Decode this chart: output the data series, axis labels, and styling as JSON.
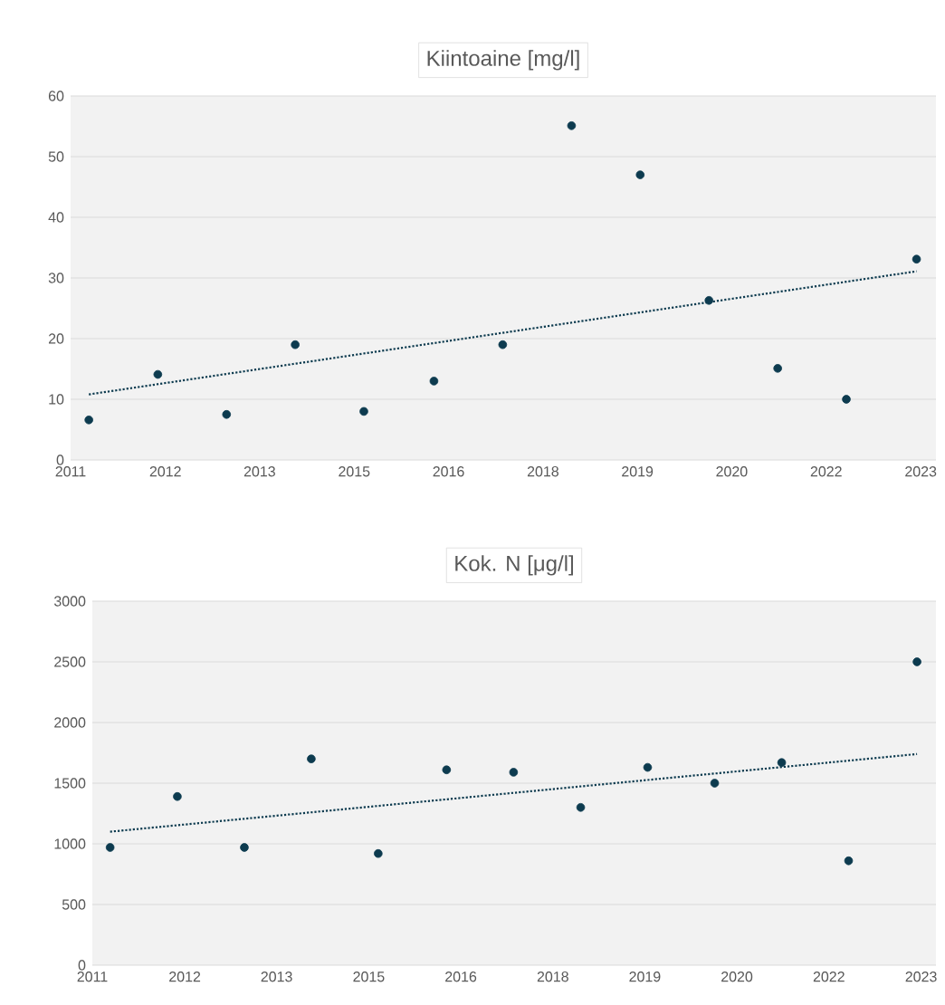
{
  "chart_data": [
    {
      "type": "scatter",
      "title": "Kiintoaine     [mg/l]",
      "x": [
        "2011-06-24",
        "2012-06-21",
        "2013-06-18",
        "2014-06-14",
        "2015-06-10",
        "2016-06-13",
        "2017-06-10",
        "2018-06-07",
        "2019-06-03",
        "2020-05-30",
        "2021-05-27",
        "2022-05-23",
        "2023-05-27"
      ],
      "series": [
        {
          "color": "#0d3b4f",
          "marker": "circle",
          "values": [
            6.6,
            14.1,
            7.5,
            19,
            8,
            13,
            19,
            55.1,
            47,
            26.3,
            15.1,
            10,
            33.1
          ]
        },
        {
          "type": "line",
          "color": "#0d3b4f",
          "marker": "none",
          "line_style": "dotted",
          "x": [
            "2011-06-24",
            "2023-05-27"
          ],
          "values": [
            10.8,
            31.1
          ]
        }
      ],
      "xlim": [
        "2011-03-20",
        "2023-09-06"
      ],
      "xticks": [
        {
          "value": "2011-03-20",
          "label": "2011"
        },
        {
          "value": "2012-07-31",
          "label": "2012"
        },
        {
          "value": "2013-12-09",
          "label": "2013"
        },
        {
          "value": "2015-04-20",
          "label": "2015"
        },
        {
          "value": "2016-08-29",
          "label": "2016"
        },
        {
          "value": "2018-01-08",
          "label": "2018"
        },
        {
          "value": "2019-05-19",
          "label": "2019"
        },
        {
          "value": "2020-09-27",
          "label": "2020"
        },
        {
          "value": "2022-02-06",
          "label": "2022"
        },
        {
          "value": "2023-06-18",
          "label": "2023"
        }
      ],
      "ylim": [
        0,
        60
      ],
      "yticks": [
        0,
        10,
        20,
        30,
        40,
        50,
        60
      ],
      "grid": "y"
    },
    {
      "type": "scatter",
      "title": "Kok. N     [μg/l]",
      "x": [
        "2011-06-24",
        "2012-06-21",
        "2013-06-18",
        "2014-06-14",
        "2015-06-10",
        "2016-06-13",
        "2017-06-10",
        "2018-06-07",
        "2019-06-03",
        "2020-05-30",
        "2021-05-27",
        "2022-05-23",
        "2023-05-27"
      ],
      "series": [
        {
          "color": "#0d3b4f",
          "marker": "circle",
          "values": [
            970,
            1390,
            970,
            1700,
            920,
            1610,
            1590,
            1300,
            1630,
            1500,
            1670,
            860,
            2500
          ]
        },
        {
          "type": "line",
          "color": "#0d3b4f",
          "marker": "none",
          "line_style": "dotted",
          "x": [
            "2011-06-24",
            "2023-05-27"
          ],
          "values": [
            1100,
            1740
          ]
        }
      ],
      "xlim": [
        "2011-03-20",
        "2023-09-06"
      ],
      "xticks": [
        {
          "value": "2011-03-20",
          "label": "2011"
        },
        {
          "value": "2012-07-31",
          "label": "2012"
        },
        {
          "value": "2013-12-09",
          "label": "2013"
        },
        {
          "value": "2015-04-20",
          "label": "2015"
        },
        {
          "value": "2016-08-29",
          "label": "2016"
        },
        {
          "value": "2018-01-08",
          "label": "2018"
        },
        {
          "value": "2019-05-19",
          "label": "2019"
        },
        {
          "value": "2020-09-27",
          "label": "2020"
        },
        {
          "value": "2022-02-06",
          "label": "2022"
        },
        {
          "value": "2023-06-18",
          "label": "2023"
        }
      ],
      "ylim": [
        0,
        3000
      ],
      "yticks": [
        0,
        500,
        1000,
        1500,
        2000,
        2500,
        3000
      ],
      "grid": "y"
    }
  ]
}
